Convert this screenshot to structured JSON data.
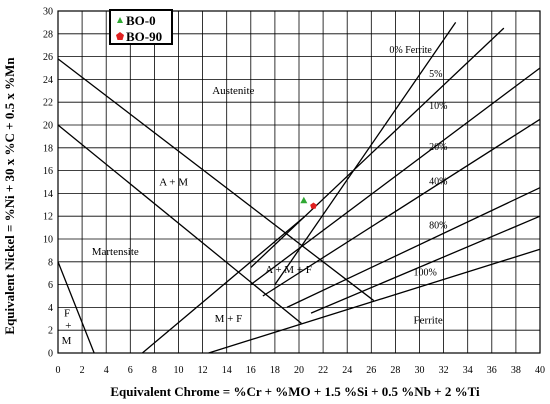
{
  "chart_data": {
    "type": "scatter",
    "xlabel": "Equivalent Chrome = %Cr + %MO + 1.5 %Si + 0.5 %Nb + 2 %Ti",
    "ylabel": "Equivalent Nickel = %Ni + 30 x %C + 0.5 x %Mn",
    "xlim": [
      0,
      40
    ],
    "ylim": [
      0,
      30
    ],
    "xticks": [
      "0",
      "2",
      "4",
      "6",
      "8",
      "10",
      "12",
      "14",
      "16",
      "18",
      "20",
      "22",
      "24",
      "26",
      "28",
      "30",
      "32",
      "34",
      "36",
      "38",
      "40"
    ],
    "yticks": [
      "0",
      "2",
      "4",
      "6",
      "8",
      "10",
      "12",
      "14",
      "16",
      "18",
      "20",
      "22",
      "24",
      "26",
      "28",
      "30"
    ],
    "grid": true,
    "legend_position": "top-left",
    "series": [
      {
        "name": "BO-0",
        "marker": "triangle",
        "color": "#2fa832",
        "points": [
          [
            20.4,
            13.4
          ]
        ]
      },
      {
        "name": "BO-90",
        "marker": "pentagon",
        "color": "#e02020",
        "points": [
          [
            21.2,
            12.9
          ]
        ]
      }
    ],
    "boundary_lines": [
      {
        "points": [
          [
            0,
            25.8
          ],
          [
            26.2,
            4.6
          ]
        ]
      },
      {
        "points": [
          [
            0,
            20.0
          ],
          [
            20.2,
            2.6
          ]
        ]
      },
      {
        "points": [
          [
            0,
            8.0
          ],
          [
            3.0,
            0
          ]
        ]
      },
      {
        "points": [
          [
            7.0,
            0
          ],
          [
            20.5,
            12.0
          ]
        ]
      },
      {
        "points": [
          [
            12.5,
            0
          ],
          [
            40,
            9.1
          ]
        ]
      },
      {
        "points": [
          [
            18.0,
            6.0
          ],
          [
            33.0,
            29.0
          ]
        ]
      },
      {
        "points": [
          [
            16.0,
            7.5
          ],
          [
            37.0,
            28.5
          ]
        ]
      },
      {
        "points": [
          [
            16.0,
            6.0
          ],
          [
            40.0,
            25.0
          ]
        ]
      },
      {
        "points": [
          [
            17.0,
            5.0
          ],
          [
            40.0,
            20.5
          ]
        ]
      },
      {
        "points": [
          [
            19.0,
            4.0
          ],
          [
            40.0,
            14.5
          ]
        ]
      },
      {
        "points": [
          [
            21.0,
            3.5
          ],
          [
            40.0,
            12.0
          ]
        ]
      }
    ],
    "ferrite_labels": [
      {
        "text": "0% Ferrite",
        "x": 27.5,
        "y": 26.3
      },
      {
        "text": "5%",
        "x": 30.8,
        "y": 24.2
      },
      {
        "text": "10%",
        "x": 30.8,
        "y": 21.4
      },
      {
        "text": "20%",
        "x": 30.8,
        "y": 17.8
      },
      {
        "text": "40%",
        "x": 30.8,
        "y": 14.8
      },
      {
        "text": "80%",
        "x": 30.8,
        "y": 10.9
      },
      {
        "text": "100%",
        "x": 29.5,
        "y": 6.8
      }
    ],
    "region_labels": [
      {
        "text": "Austenite",
        "x": 12.8,
        "y": 22.7
      },
      {
        "text": "A + M",
        "x": 8.4,
        "y": 14.7
      },
      {
        "text": "Martensite",
        "x": 2.8,
        "y": 8.6
      },
      {
        "text": "A + M + F",
        "x": 17.2,
        "y": 7.0
      },
      {
        "text": "M + F",
        "x": 13.0,
        "y": 2.7
      },
      {
        "text": "Ferrite",
        "x": 29.5,
        "y": 2.6
      },
      {
        "text": "F",
        "x": 0.5,
        "y": 3.2
      },
      {
        "text": "+",
        "x": 0.6,
        "y": 2.1
      },
      {
        "text": "M",
        "x": 0.3,
        "y": 0.8
      }
    ]
  }
}
